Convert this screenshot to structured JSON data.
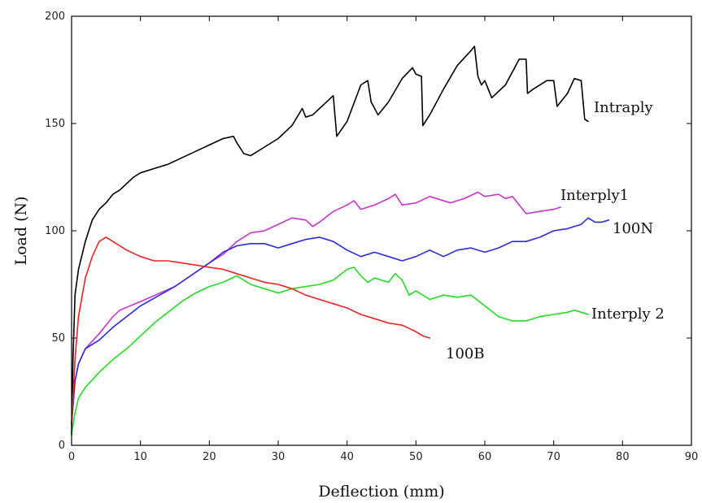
{
  "chart_data": {
    "type": "line",
    "title": "",
    "xlabel": "Deflection (mm)",
    "ylabel": "Load (N)",
    "xlim": [
      0,
      90
    ],
    "ylim": [
      0,
      200
    ],
    "xticks": [
      0,
      10,
      20,
      30,
      40,
      50,
      60,
      70,
      80,
      90
    ],
    "yticks": [
      0,
      50,
      100,
      150,
      200
    ],
    "grid": false,
    "legend": "none",
    "series": [
      {
        "name": "Intraply",
        "color": "#000000",
        "points": [
          [
            0,
            5
          ],
          [
            0.2,
            40
          ],
          [
            0.5,
            70
          ],
          [
            1,
            82
          ],
          [
            2,
            95
          ],
          [
            3,
            105
          ],
          [
            4,
            110
          ],
          [
            5,
            113
          ],
          [
            6,
            117
          ],
          [
            7,
            119
          ],
          [
            8,
            122
          ],
          [
            9,
            125
          ],
          [
            10,
            127
          ],
          [
            12,
            129
          ],
          [
            14,
            131
          ],
          [
            16,
            134
          ],
          [
            18,
            137
          ],
          [
            20,
            140
          ],
          [
            22,
            143
          ],
          [
            23.5,
            144
          ],
          [
            24,
            141
          ],
          [
            25,
            136
          ],
          [
            26,
            135
          ],
          [
            28,
            139
          ],
          [
            30,
            143
          ],
          [
            32,
            149
          ],
          [
            33.5,
            157
          ],
          [
            34,
            153
          ],
          [
            35,
            154
          ],
          [
            37,
            160
          ],
          [
            38,
            163
          ],
          [
            38.5,
            144
          ],
          [
            40,
            151
          ],
          [
            42,
            168
          ],
          [
            43,
            170
          ],
          [
            43.5,
            160
          ],
          [
            44.5,
            154
          ],
          [
            46,
            160
          ],
          [
            48,
            171
          ],
          [
            49.5,
            176
          ],
          [
            50,
            173
          ],
          [
            50.8,
            172
          ],
          [
            51,
            149
          ],
          [
            52,
            154
          ],
          [
            54,
            166
          ],
          [
            56,
            177
          ],
          [
            58,
            184
          ],
          [
            58.5,
            186
          ],
          [
            59,
            172
          ],
          [
            59.5,
            168
          ],
          [
            60,
            170
          ],
          [
            61,
            162
          ],
          [
            63,
            168
          ],
          [
            65,
            180
          ],
          [
            66,
            180
          ],
          [
            66.2,
            164
          ],
          [
            67,
            166
          ],
          [
            69,
            170
          ],
          [
            70,
            170
          ],
          [
            70.5,
            158
          ],
          [
            72,
            164
          ],
          [
            73,
            171
          ],
          [
            74,
            170
          ],
          [
            74.5,
            152
          ],
          [
            75,
            151
          ]
        ],
        "label": "Intraply"
      },
      {
        "name": "Interply1",
        "color": "#cc33cc",
        "points": [
          [
            0,
            10
          ],
          [
            0.5,
            30
          ],
          [
            1,
            38
          ],
          [
            2,
            45
          ],
          [
            4,
            52
          ],
          [
            6,
            60
          ],
          [
            7,
            63
          ],
          [
            10,
            67
          ],
          [
            15,
            74
          ],
          [
            20,
            85
          ],
          [
            22,
            89
          ],
          [
            24,
            95
          ],
          [
            26,
            99
          ],
          [
            28,
            100
          ],
          [
            30,
            103
          ],
          [
            32,
            106
          ],
          [
            34,
            105
          ],
          [
            35,
            102
          ],
          [
            36,
            104
          ],
          [
            38,
            109
          ],
          [
            40,
            112
          ],
          [
            41,
            114
          ],
          [
            42,
            110
          ],
          [
            44,
            112
          ],
          [
            46,
            115
          ],
          [
            47,
            117
          ],
          [
            48,
            112
          ],
          [
            50,
            113
          ],
          [
            52,
            116
          ],
          [
            55,
            113
          ],
          [
            57,
            115
          ],
          [
            59,
            118
          ],
          [
            60,
            116
          ],
          [
            62,
            117
          ],
          [
            63,
            115
          ],
          [
            64,
            116
          ],
          [
            65,
            112
          ],
          [
            66,
            108
          ],
          [
            68,
            109
          ],
          [
            70,
            110
          ],
          [
            71,
            111
          ]
        ],
        "label": "Interply1"
      },
      {
        "name": "100N",
        "color": "#2a2ae0",
        "points": [
          [
            0,
            10
          ],
          [
            0.5,
            30
          ],
          [
            1,
            38
          ],
          [
            2,
            45
          ],
          [
            4,
            49
          ],
          [
            6,
            55
          ],
          [
            8,
            60
          ],
          [
            10,
            65
          ],
          [
            15,
            74
          ],
          [
            20,
            85
          ],
          [
            22,
            90
          ],
          [
            24,
            93
          ],
          [
            26,
            94
          ],
          [
            28,
            94
          ],
          [
            30,
            92
          ],
          [
            32,
            94
          ],
          [
            34,
            96
          ],
          [
            36,
            97
          ],
          [
            38,
            95
          ],
          [
            40,
            91
          ],
          [
            42,
            88
          ],
          [
            44,
            90
          ],
          [
            46,
            88
          ],
          [
            48,
            86
          ],
          [
            50,
            88
          ],
          [
            52,
            91
          ],
          [
            54,
            88
          ],
          [
            56,
            91
          ],
          [
            58,
            92
          ],
          [
            60,
            90
          ],
          [
            62,
            92
          ],
          [
            64,
            95
          ],
          [
            66,
            95
          ],
          [
            68,
            97
          ],
          [
            70,
            100
          ],
          [
            72,
            101
          ],
          [
            74,
            103
          ],
          [
            75,
            106
          ],
          [
            76,
            104
          ],
          [
            77,
            104
          ],
          [
            78,
            105
          ]
        ],
        "label": "100N"
      },
      {
        "name": "Interply 2",
        "color": "#22dd22",
        "points": [
          [
            0,
            5
          ],
          [
            0.5,
            15
          ],
          [
            1,
            22
          ],
          [
            2,
            27
          ],
          [
            4,
            34
          ],
          [
            6,
            40
          ],
          [
            8,
            45
          ],
          [
            10,
            51
          ],
          [
            12,
            57
          ],
          [
            14,
            62
          ],
          [
            16,
            67
          ],
          [
            18,
            71
          ],
          [
            20,
            74
          ],
          [
            22,
            76
          ],
          [
            24,
            79
          ],
          [
            25,
            77
          ],
          [
            26,
            75
          ],
          [
            28,
            73
          ],
          [
            30,
            71
          ],
          [
            32,
            73
          ],
          [
            34,
            74
          ],
          [
            36,
            75
          ],
          [
            38,
            77
          ],
          [
            40,
            82
          ],
          [
            41,
            83
          ],
          [
            42,
            79
          ],
          [
            43,
            76
          ],
          [
            44,
            78
          ],
          [
            46,
            76
          ],
          [
            47,
            80
          ],
          [
            48,
            77
          ],
          [
            49,
            70
          ],
          [
            50,
            72
          ],
          [
            52,
            68
          ],
          [
            54,
            70
          ],
          [
            56,
            69
          ],
          [
            58,
            70
          ],
          [
            60,
            65
          ],
          [
            62,
            60
          ],
          [
            64,
            58
          ],
          [
            66,
            58
          ],
          [
            68,
            60
          ],
          [
            70,
            61
          ],
          [
            72,
            62
          ],
          [
            73,
            63
          ],
          [
            74,
            62
          ],
          [
            75,
            61
          ]
        ],
        "label": "Interply 2"
      },
      {
        "name": "100B",
        "color": "#ee2222",
        "points": [
          [
            0,
            10
          ],
          [
            0.5,
            40
          ],
          [
            1,
            60
          ],
          [
            2,
            78
          ],
          [
            3,
            88
          ],
          [
            4,
            95
          ],
          [
            5,
            97
          ],
          [
            6,
            95
          ],
          [
            8,
            91
          ],
          [
            10,
            88
          ],
          [
            12,
            86
          ],
          [
            14,
            86
          ],
          [
            16,
            85
          ],
          [
            18,
            84
          ],
          [
            20,
            83
          ],
          [
            22,
            82
          ],
          [
            24,
            80
          ],
          [
            26,
            78
          ],
          [
            28,
            76
          ],
          [
            30,
            75
          ],
          [
            32,
            73
          ],
          [
            34,
            70
          ],
          [
            36,
            68
          ],
          [
            38,
            66
          ],
          [
            40,
            64
          ],
          [
            42,
            61
          ],
          [
            44,
            59
          ],
          [
            46,
            57
          ],
          [
            48,
            56
          ],
          [
            50,
            53
          ],
          [
            51,
            51
          ],
          [
            52,
            50
          ]
        ],
        "label": "100B"
      }
    ]
  }
}
